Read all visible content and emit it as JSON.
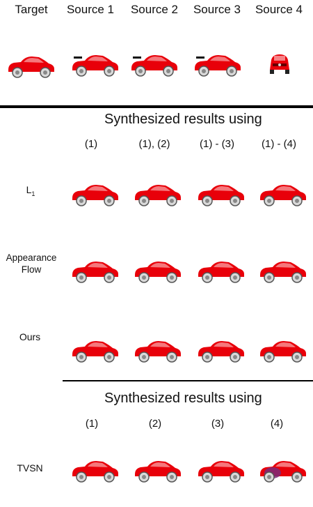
{
  "top_headers": [
    "Target",
    "Source 1",
    "Source 2",
    "Source 3",
    "Source 4"
  ],
  "section1": {
    "title": "Synthesized results using",
    "columns": [
      "(1)",
      "(1), (2)",
      "(1) - (3)",
      "(1) - (4)"
    ],
    "rows": [
      {
        "label": "L",
        "subscript": "1"
      },
      {
        "label": "Appearance Flow"
      },
      {
        "label": "Ours"
      }
    ]
  },
  "section2": {
    "title": "Synthesized results using",
    "columns": [
      "(1)",
      "(2)",
      "(3)",
      "(4)"
    ],
    "rows": [
      {
        "label": "TVSN"
      }
    ]
  },
  "colors": {
    "car_red": "#e8000a",
    "car_purple": "#7a2a7a",
    "rule": "#000000"
  }
}
